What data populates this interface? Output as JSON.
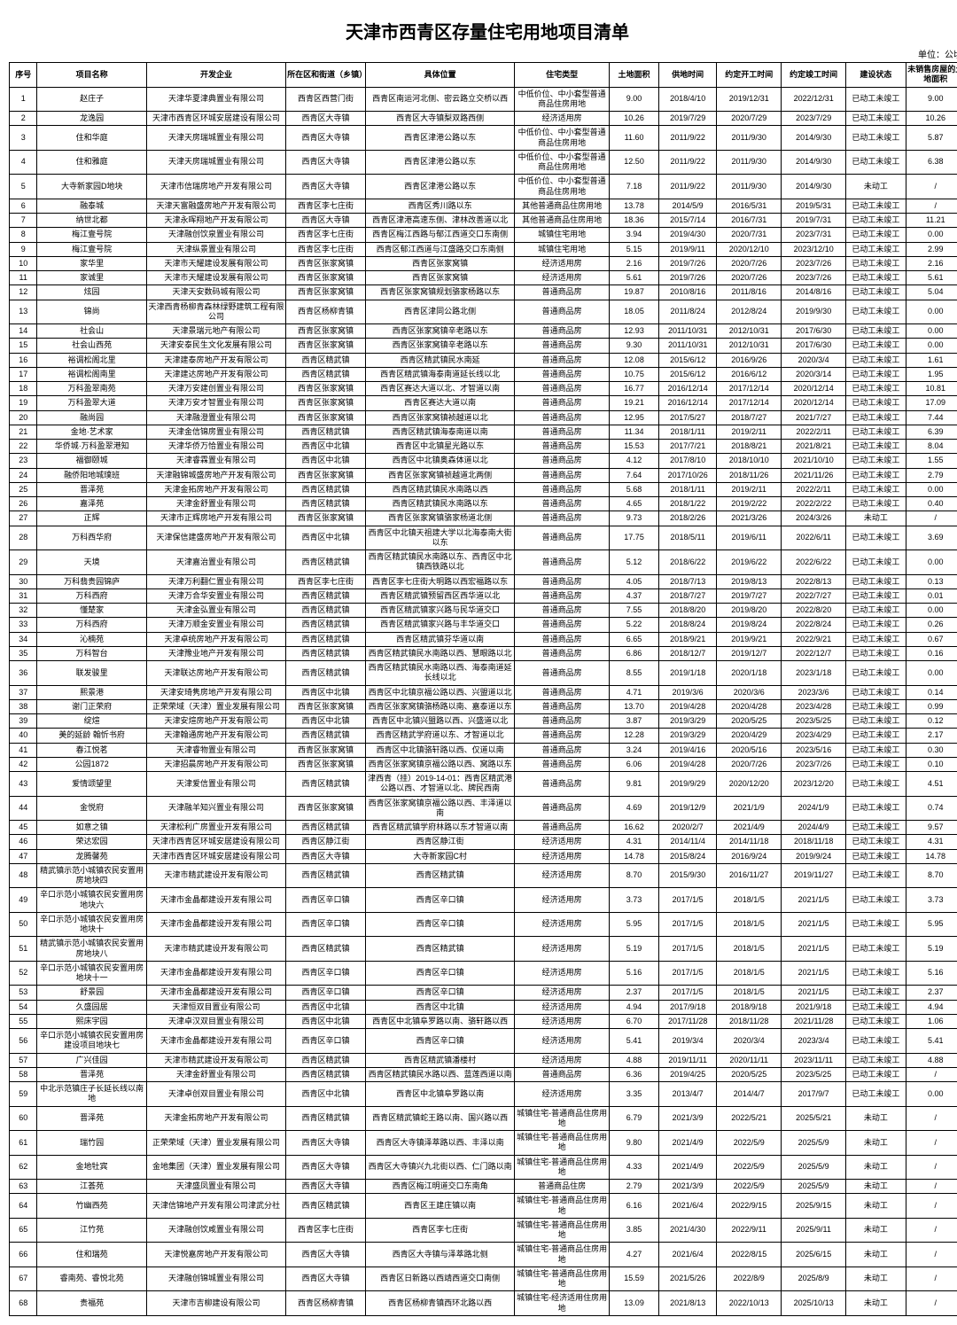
{
  "title": "天津市西青区存量住宅用地项目清单",
  "unit": "单位：公顷",
  "columns": [
    "序号",
    "项目名称",
    "开发企业",
    "所在区和街道（乡镇）",
    "具体位置",
    "住宅类型",
    "土地面积",
    "供地时间",
    "约定开工时间",
    "约定竣工时间",
    "建设状态",
    "未销售房屋的土地面积"
  ],
  "rows": [
    [
      "1",
      "赵庄子",
      "天津华夏津典置业有限公司",
      "西青区西营门街",
      "西青区南运河北侧、密云路立交桥以西",
      "中低价位、中小套型普通商品住房用地",
      "9.00",
      "2018/4/10",
      "2019/12/31",
      "2022/12/31",
      "已动工未竣工",
      "9.00"
    ],
    [
      "2",
      "龙逸园",
      "天津市西青区环城安居建设有限公司",
      "西青区大寺镇",
      "西青区大寺镇梨双路西侧",
      "经济适用房",
      "10.26",
      "2019/7/29",
      "2020/7/29",
      "2023/7/29",
      "已动工未竣工",
      "10.26"
    ],
    [
      "3",
      "住和华庭",
      "天津天房瑞城置业有限公司",
      "西青区大寺镇",
      "西青区津港公路以东",
      "中低价位、中小套型普通商品住房用地",
      "11.60",
      "2011/9/22",
      "2011/9/30",
      "2014/9/30",
      "已动工未竣工",
      "5.87"
    ],
    [
      "4",
      "住和雅庭",
      "天津天房瑞城置业有限公司",
      "西青区大寺镇",
      "西青区津港公路以东",
      "中低价位、中小套型普通商品住房用地",
      "12.50",
      "2011/9/22",
      "2011/9/30",
      "2014/9/30",
      "已动工未竣工",
      "6.38"
    ],
    [
      "5",
      "大寺新家园D地块",
      "天津市信瑞房地产开发有限公司",
      "西青区大寺镇",
      "西青区津港公路以东",
      "中低价位、中小套型普通商品住房用地",
      "7.18",
      "2011/9/22",
      "2011/9/30",
      "2014/9/30",
      "未动工",
      "/"
    ],
    [
      "6",
      "融泰城",
      "天津天富融盛房地产开发有限公司",
      "西青区李七庄街",
      "西青区秀川路以东",
      "其他普通商品住房用地",
      "13.78",
      "2014/5/9",
      "2016/5/31",
      "2019/5/31",
      "已动工未竣工",
      "/"
    ],
    [
      "7",
      "纳世北都",
      "天津永晖翔地产开发有限公司",
      "西青区大寺镇",
      "西青区津港高速东侧、津林改善道以北",
      "其他普通商品住房用地",
      "18.36",
      "2015/7/14",
      "2016/7/31",
      "2019/7/31",
      "已动工未竣工",
      "11.21"
    ],
    [
      "8",
      "梅江壹号院",
      "天津融创饮泉置业有限公司",
      "西青区李七庄街",
      "西青区梅江西路与郁江西道交口东南侧",
      "城镇住宅用地",
      "3.94",
      "2019/4/30",
      "2020/7/31",
      "2023/7/31",
      "已动工未竣工",
      "0.00"
    ],
    [
      "9",
      "梅江壹号院",
      "天津纵景置业有限公司",
      "西青区李七庄街",
      "西青区郁江西道与江盛路交口东南侧",
      "城镇住宅用地",
      "5.15",
      "2019/9/11",
      "2020/12/10",
      "2023/12/10",
      "已动工未竣工",
      "2.99"
    ],
    [
      "10",
      "家华里",
      "天津市天耀建设发展有限公司",
      "西青区张家窝镇",
      "西青区张家窝镇",
      "经济适用房",
      "2.16",
      "2019/7/26",
      "2020/7/26",
      "2023/7/26",
      "已动工未竣工",
      "2.16"
    ],
    [
      "11",
      "家诚里",
      "天津市天耀建设发展有限公司",
      "西青区张家窝镇",
      "西青区张家窝镇",
      "经济适用房",
      "5.61",
      "2019/7/26",
      "2020/7/26",
      "2023/7/26",
      "已动工未竣工",
      "5.61"
    ],
    [
      "12",
      "炫园",
      "天津天安数码城有限公司",
      "西青区张家窝镇",
      "西青区张家窝镇规划骆家杨路以东",
      "普通商品房",
      "19.87",
      "2010/8/16",
      "2011/8/16",
      "2014/8/16",
      "已动工未竣工",
      "5.04"
    ],
    [
      "13",
      "锦尚",
      "天津西青杨柳青森林绿野建筑工程有限公司",
      "西青区杨柳青镇",
      "西青区津同公路北侧",
      "普通商品房",
      "18.05",
      "2011/8/24",
      "2012/8/24",
      "2019/9/30",
      "已动工未竣工",
      "0.00"
    ],
    [
      "14",
      "社会山",
      "天津景瑞元地产有限公司",
      "西青区张家窝镇",
      "西青区张家窝镇辛老路以东",
      "普通商品房",
      "12.93",
      "2011/10/31",
      "2012/10/31",
      "2017/6/30",
      "已动工未竣工",
      "0.00"
    ],
    [
      "15",
      "社会山西苑",
      "天津安泰民生文化发展有限公司",
      "西青区张家窝镇",
      "西青区张家窝镇辛老路以东",
      "普通商品房",
      "9.30",
      "2011/10/31",
      "2012/10/31",
      "2017/6/30",
      "已动工未竣工",
      "0.00"
    ],
    [
      "16",
      "裕调松阁北里",
      "天津建泰房地产开发有限公司",
      "西青区精武镇",
      "西青区精武镇民水南延",
      "普通商品房",
      "12.08",
      "2015/6/12",
      "2016/9/26",
      "2020/3/4",
      "已动工未竣工",
      "1.61"
    ],
    [
      "17",
      "裕调松阁南里",
      "天津建达房地产开发有限公司",
      "西青区精武镇",
      "西青区精武镇海泰南道延长线以北",
      "普通商品房",
      "10.75",
      "2015/6/12",
      "2016/6/12",
      "2020/3/14",
      "已动工未竣工",
      "1.95"
    ],
    [
      "18",
      "万科盈翠南苑",
      "天津万安建创置业有限公司",
      "西青区张家窝镇",
      "西青区赛达大道以北、才智道以南",
      "普通商品房",
      "16.77",
      "2016/12/14",
      "2017/12/14",
      "2020/12/14",
      "已动工未竣工",
      "10.81"
    ],
    [
      "19",
      "万科盈翠大道",
      "天津万安才智置业有限公司",
      "西青区张家窝镇",
      "西青区赛达大道以南",
      "普通商品房",
      "19.21",
      "2016/12/14",
      "2017/12/14",
      "2020/12/14",
      "已动工未竣工",
      "17.09"
    ],
    [
      "20",
      "融尚园",
      "天津融澄置业有限公司",
      "西青区张家窝镇",
      "西青区张家窝镇祯越道以北",
      "普通商品房",
      "12.95",
      "2017/5/27",
      "2018/7/27",
      "2021/7/27",
      "已动工未竣工",
      "7.44"
    ],
    [
      "21",
      "金地·艺术家",
      "天津金信锦房置业有限公司",
      "西青区精武镇",
      "西青区精武镇海泰南道以南",
      "普通商品房",
      "11.34",
      "2018/1/11",
      "2019/2/11",
      "2022/2/11",
      "已动工未竣工",
      "6.39"
    ],
    [
      "22",
      "华侨城·万科盈翠港知",
      "天津华侨万恰置业有限公司",
      "西青区中北镇",
      "西青区中北镇星光路以东",
      "普通商品房",
      "15.53",
      "2017/7/21",
      "2018/8/21",
      "2021/8/21",
      "已动工未竣工",
      "8.04"
    ],
    [
      "23",
      "福御颐城",
      "天津睿霖置业有限公司",
      "西青区中北镇",
      "西青区中北镇奥森体道以北",
      "普通商品房",
      "4.12",
      "2017/8/10",
      "2018/10/10",
      "2021/10/10",
      "已动工未竣工",
      "1.55"
    ],
    [
      "24",
      "融侨阳地城璞班",
      "天津融锦城盛房地产开发有限公司",
      "西青区张家窝镇",
      "西青区张家窝镇祯越道北两侧",
      "普通商品房",
      "7.64",
      "2017/10/26",
      "2018/11/26",
      "2021/11/26",
      "已动工未竣工",
      "2.79"
    ],
    [
      "25",
      "晋泽苑",
      "天津金拓房地产开发有限公司",
      "西青区精武镇",
      "西青区精武镇民水南路以西",
      "普通商品房",
      "5.68",
      "2018/1/11",
      "2019/2/11",
      "2022/2/11",
      "已动工未竣工",
      "0.00"
    ],
    [
      "26",
      "嘉泽苑",
      "天津金舒置业有限公司",
      "西青区精武镇",
      "西青区精武镇民水南路以东",
      "普通商品房",
      "4.65",
      "2018/1/22",
      "2019/2/22",
      "2022/2/22",
      "已动工未竣工",
      "0.40"
    ],
    [
      "27",
      "正辉",
      "天津市正辉房地产开发有限公司",
      "西青区张家窝镇",
      "西青区张家窝镇骆家杨道北侧",
      "普通商品房",
      "9.73",
      "2018/2/26",
      "2021/3/26",
      "2024/3/26",
      "未动工",
      "/"
    ],
    [
      "28",
      "万科西华府",
      "天津保信建盛房地产开发有限公司",
      "西青区中北镇",
      "西青区中北镇天祖建大学以北海泰南大街以东",
      "普通商品房",
      "17.75",
      "2018/5/11",
      "2019/6/11",
      "2022/6/11",
      "已动工未竣工",
      "3.69"
    ],
    [
      "29",
      "天境",
      "天津嘉治置业有限公司",
      "西青区精武镇",
      "西青区精武镇民水南路以东、西青区中北镇西铁路以北",
      "普通商品房",
      "5.12",
      "2018/6/22",
      "2019/6/22",
      "2022/6/22",
      "已动工未竣工",
      "0.00"
    ],
    [
      "30",
      "万科翡贵园锦庐",
      "天津万利翻仁置业有限公司",
      "西青区李七庄街",
      "西青区李七庄街大明路以西宏福路以东",
      "普通商品房",
      "4.05",
      "2018/7/13",
      "2019/8/13",
      "2022/8/13",
      "已动工未竣工",
      "0.13"
    ],
    [
      "31",
      "万科西府",
      "天津万合华安置业有限公司",
      "西青区精武镇",
      "西青区精武镇预留西区西华道以北",
      "普通商品房",
      "4.37",
      "2018/7/27",
      "2019/7/27",
      "2022/7/27",
      "已动工未竣工",
      "0.01"
    ],
    [
      "32",
      "懂楚家",
      "天津金弘置业有限公司",
      "西青区精武镇",
      "西青区精武镇家兴路与民华道交口",
      "普通商品房",
      "7.55",
      "2018/8/20",
      "2019/8/20",
      "2022/8/20",
      "已动工未竣工",
      "0.00"
    ],
    [
      "33",
      "万科西府",
      "天津万顺金安置业有限公司",
      "西青区精武镇",
      "西青区精武镇家兴路与丰华道交口",
      "普通商品房",
      "5.22",
      "2018/8/24",
      "2019/8/24",
      "2022/8/24",
      "已动工未竣工",
      "0.26"
    ],
    [
      "34",
      "沁楠苑",
      "天津卓统房地产开发有限公司",
      "西青区精武镇",
      "西青区精武镇芬华道以南",
      "普通商品房",
      "6.65",
      "2018/9/21",
      "2019/9/21",
      "2022/9/21",
      "已动工未竣工",
      "0.67"
    ],
    [
      "35",
      "万科智台",
      "天津豫业地产开发有限公司",
      "西青区精武镇",
      "西青区精武镇民水南路以西、慧眼路以北",
      "普通商品房",
      "6.86",
      "2018/12/7",
      "2019/12/7",
      "2022/12/7",
      "已动工未竣工",
      "0.16"
    ],
    [
      "36",
      "联发骏里",
      "天津联达房地产开发有限公司",
      "西青区精武镇",
      "西青区精武镇民水南路以西、海泰南道延长线以北",
      "普通商品房",
      "8.55",
      "2019/1/18",
      "2020/1/18",
      "2023/1/18",
      "已动工未竣工",
      "0.00"
    ],
    [
      "37",
      "熙景港",
      "天津安琦隽房地产开发有限公司",
      "西青区中北镇",
      "西青区中北镇京福公路以西、兴盟道以北",
      "普通商品房",
      "4.71",
      "2019/3/6",
      "2020/3/6",
      "2023/3/6",
      "已动工未竣工",
      "0.14"
    ],
    [
      "38",
      "谢门正荣府",
      "正荣荣域（天津）置业发展有限公司",
      "西青区张家窝镇",
      "西青区张家窝镇骆杨路以南、嘉泰道以东",
      "普通商品房",
      "13.70",
      "2019/4/28",
      "2020/4/28",
      "2023/4/28",
      "已动工未竣工",
      "0.99"
    ],
    [
      "39",
      "绽煊",
      "天津安煊房地产开发有限公司",
      "西青区中北镇",
      "西青区中北镇兴盟路以西、兴盛道以北",
      "普通商品房",
      "3.87",
      "2019/3/29",
      "2020/5/25",
      "2023/5/25",
      "已动工未竣工",
      "0.12"
    ],
    [
      "40",
      "美的延龄 翰忻书府",
      "天津翰通房地产开发有限公司",
      "西青区精武镇",
      "西青区精武学府道以东、才智道以北",
      "普通商品房",
      "12.28",
      "2019/3/29",
      "2020/4/29",
      "2023/4/29",
      "已动工未竣工",
      "2.17"
    ],
    [
      "41",
      "春江悦茗",
      "天津睿物置业有限公司",
      "西青区张家窝镇",
      "西青区中北镇骆轩路以西、仅道以南",
      "普通商品房",
      "3.24",
      "2019/4/16",
      "2020/5/16",
      "2023/5/16",
      "已动工未竣工",
      "0.30"
    ],
    [
      "42",
      "公园1872",
      "天津招晨房地产开发有限公司",
      "西青区张家窝镇",
      "西青区张家窝镇京福公路以西、窝路以东",
      "普通商品房",
      "6.06",
      "2019/4/28",
      "2020/7/26",
      "2023/7/26",
      "已动工未竣工",
      "0.10"
    ],
    [
      "43",
      "爱情颂望里",
      "天津爱信置业有限公司",
      "西青区精武镇",
      "津西青（挂）2019-14-01：西青区精武港公路以西、才智道以北、牌民西南",
      "普通商品房",
      "9.81",
      "2019/9/29",
      "2020/12/20",
      "2023/12/20",
      "已动工未竣工",
      "4.51"
    ],
    [
      "44",
      "金悦府",
      "天津融羊知兴置业有限公司",
      "西青区张家窝镇",
      "西青区张家窝镇京福公路以西、丰泽道以南",
      "普通商品房",
      "4.69",
      "2019/12/9",
      "2021/1/9",
      "2024/1/9",
      "已动工未竣工",
      "0.74"
    ],
    [
      "45",
      "如意之镇",
      "天津松利广房置业开发有限公司",
      "西青区精武镇",
      "西青区精武镇学府林路以东才智道以南",
      "普通商品房",
      "16.62",
      "2020/2/7",
      "2021/4/9",
      "2024/4/9",
      "已动工未竣工",
      "9.57"
    ],
    [
      "46",
      "荣达宏园",
      "天津市西青区环城安居建设有限公司",
      "西青区静江街",
      "西青区静江街",
      "经济适用房",
      "4.31",
      "2014/11/4",
      "2014/11/18",
      "2018/11/18",
      "已动工未竣工",
      "4.31"
    ],
    [
      "47",
      "龙腾馨苑",
      "天津市西青区环城安居建设有限公司",
      "西青区大寺镇",
      "大寺新家园C村",
      "经济适用房",
      "14.78",
      "2015/8/24",
      "2016/9/24",
      "2019/9/24",
      "已动工未竣工",
      "14.78"
    ],
    [
      "48",
      "精武镇示范小城镇农民安置用房地块四",
      "天津市精武建设开发有限公司",
      "西青区精武镇",
      "西青区精武镇",
      "经济适用房",
      "8.70",
      "2015/9/30",
      "2016/11/27",
      "2019/11/27",
      "已动工未竣工",
      "8.70"
    ],
    [
      "49",
      "辛口示范小城镇农民安置用房地块六",
      "天津市金晶都建设开发有限公司",
      "西青区辛口镇",
      "西青区辛口镇",
      "经济适用房",
      "3.73",
      "2017/1/5",
      "2018/1/5",
      "2021/1/5",
      "已动工未竣工",
      "3.73"
    ],
    [
      "50",
      "辛口示范小城镇农民安置用房地块十",
      "天津市金晶都建设开发有限公司",
      "西青区辛口镇",
      "西青区辛口镇",
      "经济适用房",
      "5.95",
      "2017/1/5",
      "2018/1/5",
      "2021/1/5",
      "已动工未竣工",
      "5.95"
    ],
    [
      "51",
      "精武镇示范小城镇农民安置用房地块八",
      "天津市精武建设开发有限公司",
      "西青区精武镇",
      "西青区精武镇",
      "经济适用房",
      "5.19",
      "2017/1/5",
      "2018/1/5",
      "2021/1/5",
      "已动工未竣工",
      "5.19"
    ],
    [
      "52",
      "辛口示范小城镇农民安置用房地块十一",
      "天津市金晶都建设开发有限公司",
      "西青区辛口镇",
      "西青区辛口镇",
      "经济适用房",
      "5.16",
      "2017/1/5",
      "2018/1/5",
      "2021/1/5",
      "已动工未竣工",
      "5.16"
    ],
    [
      "53",
      "舒景园",
      "天津市金晶都建设开发有限公司",
      "西青区辛口镇",
      "西青区辛口镇",
      "经济适用房",
      "2.37",
      "2017/1/5",
      "2018/1/5",
      "2021/1/5",
      "已动工未竣工",
      "2.37"
    ],
    [
      "54",
      "久盛园居",
      "天津恒双目置业有限公司",
      "西青区中北镇",
      "西青区中北镇",
      "经济适用房",
      "4.94",
      "2017/9/18",
      "2018/9/18",
      "2021/9/18",
      "已动工未竣工",
      "4.94"
    ],
    [
      "55",
      "熙床宇园",
      "天津卓汉双目置业有限公司",
      "西青区中北镇",
      "西青区中北镇阜罗路以南、骆轩路以西",
      "经济适用房",
      "6.70",
      "2017/11/28",
      "2018/11/28",
      "2021/11/28",
      "已动工未竣工",
      "1.06"
    ],
    [
      "56",
      "辛口示范小城镇农民安置用房建设项目地块七",
      "天津市金晶都建设开发有限公司",
      "西青区辛口镇",
      "西青区辛口镇",
      "经济适用房",
      "5.41",
      "2019/3/4",
      "2020/3/4",
      "2023/3/4",
      "已动工未竣工",
      "5.41"
    ],
    [
      "57",
      "广兴佳园",
      "天津市精武建设开发有限公司",
      "西青区精武镇",
      "西青区精武镇潘楼村",
      "经济适用房",
      "4.88",
      "2019/11/11",
      "2020/11/11",
      "2023/11/11",
      "已动工未竣工",
      "4.88"
    ],
    [
      "58",
      "晋泽苑",
      "天津金舒置业有限公司",
      "西青区精武镇",
      "西青区精武镇民水路以西、蓝莲西道以南",
      "普通商品房",
      "6.36",
      "2019/4/25",
      "2020/5/25",
      "2023/5/25",
      "已动工未竣工",
      "/"
    ],
    [
      "59",
      "中北示范镇庄子长延长线以南地",
      "天津卓创双目置业有限公司",
      "西青区中北镇",
      "西青区中北镇阜罗路以南",
      "经济适用房",
      "3.35",
      "2013/4/7",
      "2014/4/7",
      "2017/9/7",
      "已动工未竣工",
      "0.00"
    ],
    [
      "60",
      "晋泽苑",
      "天津金拓房地产开发有限公司",
      "西青区精武镇",
      "西青区精武镇蛇王路以南、国兴路以西",
      "城镇住宅-普通商品住房用地",
      "6.79",
      "2021/3/9",
      "2022/5/21",
      "2025/5/21",
      "未动工",
      "/"
    ],
    [
      "61",
      "瑞竹园",
      "正荣荣域（天津）置业发展有限公司",
      "西青区大寺镇",
      "西青区大寺镇泽萃路以西、丰泽以南",
      "城镇住宅-普通商品住房用地",
      "9.80",
      "2021/4/9",
      "2022/5/9",
      "2025/5/9",
      "未动工",
      "/"
    ],
    [
      "62",
      "金地牡宾",
      "金地集团（天津）置业发展有限公司",
      "西青区大寺镇",
      "西青区大寺镇兴九北街以西、仁门路以南",
      "城镇住宅-普通商品住房用地",
      "4.33",
      "2021/4/9",
      "2022/5/9",
      "2025/5/9",
      "未动工",
      "/"
    ],
    [
      "63",
      "江荟苑",
      "天津盛凤置业有限公司",
      "西青区大寺镇",
      "西青区梅江明道交口东南角",
      "普通商品住房",
      "2.79",
      "2021/3/9",
      "2022/5/9",
      "2025/5/9",
      "未动工",
      "/"
    ],
    [
      "64",
      "竹幽西苑",
      "天津信锦地产开发有限公司津武分社",
      "西青区精武镇",
      "西青区王建庄镇以南",
      "城镇住宅-普通商品住房用地",
      "6.16",
      "2021/6/4",
      "2022/9/15",
      "2025/9/15",
      "未动工",
      "/"
    ],
    [
      "65",
      "江竹苑",
      "天津融创饮咸置业有限公司",
      "西青区李七庄街",
      "西青区李七庄街",
      "城镇住宅-普通商品住房用地",
      "3.85",
      "2021/4/30",
      "2022/9/11",
      "2025/9/11",
      "未动工",
      "/"
    ],
    [
      "66",
      "住和瑞苑",
      "天津悦嘉房地产开发有限公司",
      "西青区大寺镇",
      "西青区大寺镇与泽萃路北侧",
      "城镇住宅-普通商品住房用地",
      "4.27",
      "2021/6/4",
      "2022/8/15",
      "2025/6/15",
      "未动工",
      "/"
    ],
    [
      "67",
      "睿南苑、睿悦北苑",
      "天津融创锦城置业有限公司",
      "西青区大寺镇",
      "西青区日新路以西靖西道交口南侧",
      "城镇住宅-普通商品住房用地",
      "15.59",
      "2021/5/26",
      "2022/8/9",
      "2025/8/9",
      "未动工",
      "/"
    ],
    [
      "68",
      "贵福苑",
      "天津市吉柳建设有限公司",
      "西青区杨柳青镇",
      "西青区杨柳青镇西环北路以西",
      "城镇住宅-经济适用住房用地",
      "13.09",
      "2021/8/13",
      "2022/10/13",
      "2025/10/13",
      "未动工",
      "/"
    ]
  ]
}
